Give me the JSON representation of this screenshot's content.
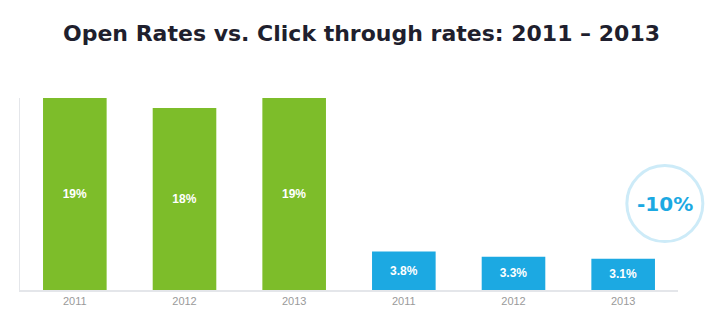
{
  "chart_data": {
    "type": "bar",
    "title": "Open Rates vs. Click through rates: 2011 – 2013",
    "categories": [
      "2011",
      "2012",
      "2013"
    ],
    "series": [
      {
        "color": "#7dbd2a",
        "values": [
          19,
          18,
          19
        ],
        "value_labels": [
          "19%",
          "18%",
          "19%"
        ]
      },
      {
        "color": "#1ca9e2",
        "values": [
          3.8,
          3.3,
          3.1
        ],
        "value_labels": [
          "3.8%",
          "3.3%",
          "3.1%"
        ],
        "annotation": "-10%"
      }
    ],
    "ylim": [
      0,
      19
    ],
    "data_labels": true,
    "tick_labels": "x",
    "grid": false
  }
}
